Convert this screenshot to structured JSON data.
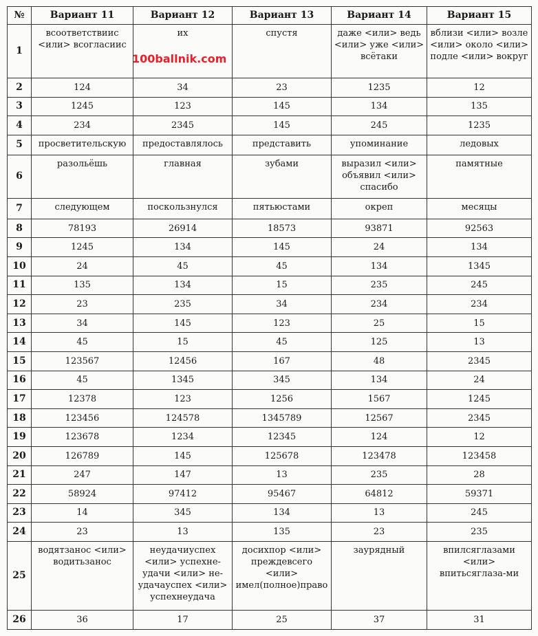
{
  "header": [
    "№",
    "Вариант 11",
    "Вариант 12",
    "Вариант 13",
    "Вариант 14",
    "Вариант 15"
  ],
  "watermark": "100ballnik.com",
  "rows": [
    {
      "n": "1",
      "cells": [
        "всоответствиис <или> всогласиис",
        "их",
        "спустя",
        "даже <или> ведь <или> уже <или> всётаки",
        "вблизи <или> возле <или> около <или> подле <или> вокруг"
      ]
    },
    {
      "n": "2",
      "cells": [
        "124",
        "34",
        "23",
        "1235",
        "12"
      ]
    },
    {
      "n": "3",
      "cells": [
        "1245",
        "123",
        "145",
        "134",
        "135"
      ]
    },
    {
      "n": "4",
      "cells": [
        "234",
        "2345",
        "145",
        "245",
        "1235"
      ]
    },
    {
      "n": "5",
      "cells": [
        "просветительскую",
        "предоставлялось",
        "представить",
        "упоминание",
        "ледовых"
      ]
    },
    {
      "n": "6",
      "cells": [
        "разольёшь",
        "главная",
        "зубами",
        "выразил <или> объявил <или> спасибо",
        "памятные"
      ]
    },
    {
      "n": "7",
      "cells": [
        "следующем",
        "поскользнулся",
        "пятьюстами",
        "окреп",
        "месяцы"
      ]
    },
    {
      "n": "8",
      "cells": [
        "78193",
        "26914",
        "18573",
        "93871",
        "92563"
      ]
    },
    {
      "n": "9",
      "cells": [
        "1245",
        "134",
        "145",
        "24",
        "134"
      ]
    },
    {
      "n": "10",
      "cells": [
        "24",
        "45",
        "45",
        "134",
        "1345"
      ]
    },
    {
      "n": "11",
      "cells": [
        "135",
        "134",
        "15",
        "235",
        "245"
      ]
    },
    {
      "n": "12",
      "cells": [
        "23",
        "235",
        "34",
        "234",
        "234"
      ]
    },
    {
      "n": "13",
      "cells": [
        "34",
        "145",
        "123",
        "25",
        "15"
      ]
    },
    {
      "n": "14",
      "cells": [
        "45",
        "15",
        "45",
        "125",
        "13"
      ]
    },
    {
      "n": "15",
      "cells": [
        "123567",
        "12456",
        "167",
        "48",
        "2345"
      ]
    },
    {
      "n": "16",
      "cells": [
        "45",
        "1345",
        "345",
        "134",
        "24"
      ]
    },
    {
      "n": "17",
      "cells": [
        "12378",
        "123",
        "1256",
        "1567",
        "1245"
      ]
    },
    {
      "n": "18",
      "cells": [
        "123456",
        "124578",
        "1345789",
        "12567",
        "2345"
      ]
    },
    {
      "n": "19",
      "cells": [
        "123678",
        "1234",
        "12345",
        "124",
        "12"
      ]
    },
    {
      "n": "20",
      "cells": [
        "126789",
        "145",
        "125678",
        "123478",
        "123458"
      ]
    },
    {
      "n": "21",
      "cells": [
        "247",
        "147",
        "13",
        "235",
        "28"
      ]
    },
    {
      "n": "22",
      "cells": [
        "58924",
        "97412",
        "95467",
        "64812",
        "59371"
      ]
    },
    {
      "n": "23",
      "cells": [
        "14",
        "345",
        "134",
        "13",
        "245"
      ]
    },
    {
      "n": "24",
      "cells": [
        "23",
        "13",
        "135",
        "23",
        "235"
      ]
    },
    {
      "n": "25",
      "cells": [
        "водятзанос <или> водитьзанос",
        "неудачиуспех <или> успехне-удачи <или> не-удачауспех <или> успехнеудача",
        "досихпор <или> преждевсего <или> имел(полное)право",
        "заурядный",
        "впилсяглазами <или> впитьсяглаза-ми"
      ]
    },
    {
      "n": "26",
      "cells": [
        "36",
        "17",
        "25",
        "37",
        "31"
      ]
    }
  ]
}
